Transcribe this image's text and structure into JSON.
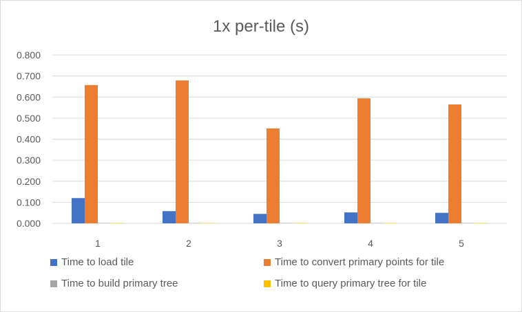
{
  "chart_data": {
    "type": "bar",
    "title": "1x per-tile (s)",
    "xlabel": "",
    "ylabel": "",
    "categories": [
      "1",
      "2",
      "3",
      "4",
      "5"
    ],
    "ylim": [
      0,
      0.8
    ],
    "yticks": [
      "0.000",
      "0.100",
      "0.200",
      "0.300",
      "0.400",
      "0.500",
      "0.600",
      "0.700",
      "0.800"
    ],
    "grid": true,
    "legend_position": "bottom",
    "series": [
      {
        "name": "Time to load tile",
        "color": "#4472c4",
        "values": [
          0.12,
          0.058,
          0.045,
          0.052,
          0.05
        ]
      },
      {
        "name": "Time to convert primary points for tile",
        "color": "#ed7d31",
        "values": [
          0.657,
          0.679,
          0.451,
          0.594,
          0.565
        ]
      },
      {
        "name": "Time to build primary tree",
        "color": "#a5a5a5",
        "values": [
          0.001,
          0.001,
          0.001,
          0.001,
          0.001
        ]
      },
      {
        "name": "Time to query primary tree for tile",
        "color": "#ffc000",
        "values": [
          0.001,
          0.001,
          0.001,
          0.001,
          0.001
        ]
      }
    ]
  }
}
